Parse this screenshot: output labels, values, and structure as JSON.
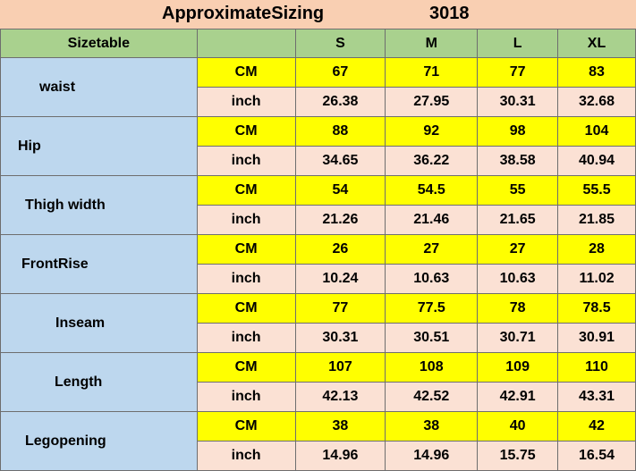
{
  "title": {
    "left": "ApproximateSizing",
    "right": "3018"
  },
  "header": {
    "label": "Sizetable",
    "sizes": [
      "S",
      "M",
      "L",
      "XL"
    ]
  },
  "units": {
    "cm": "CM",
    "inch": "inch"
  },
  "rows": [
    {
      "name": "waist",
      "cm": [
        "67",
        "71",
        "77",
        "83"
      ],
      "inch": [
        "26.38",
        "27.95",
        "30.31",
        "32.68"
      ]
    },
    {
      "name": "Hip",
      "cm": [
        "88",
        "92",
        "98",
        "104"
      ],
      "inch": [
        "34.65",
        "36.22",
        "38.58",
        "40.94"
      ]
    },
    {
      "name": "Thigh width",
      "cm": [
        "54",
        "54.5",
        "55",
        "55.5"
      ],
      "inch": [
        "21.26",
        "21.46",
        "21.65",
        "21.85"
      ]
    },
    {
      "name": "FrontRise",
      "cm": [
        "26",
        "27",
        "27",
        "28"
      ],
      "inch": [
        "10.24",
        "10.63",
        "10.63",
        "11.02"
      ]
    },
    {
      "name": "Inseam",
      "cm": [
        "77",
        "77.5",
        "78",
        "78.5"
      ],
      "inch": [
        "30.31",
        "30.51",
        "30.71",
        "30.91"
      ]
    },
    {
      "name": "Length",
      "cm": [
        "107",
        "108",
        "109",
        "110"
      ],
      "inch": [
        "42.13",
        "42.52",
        "42.91",
        "43.31"
      ]
    },
    {
      "name": "Legopening",
      "cm": [
        "38",
        "38",
        "40",
        "42"
      ],
      "inch": [
        "14.96",
        "14.96",
        "15.75",
        "16.54"
      ]
    }
  ]
}
